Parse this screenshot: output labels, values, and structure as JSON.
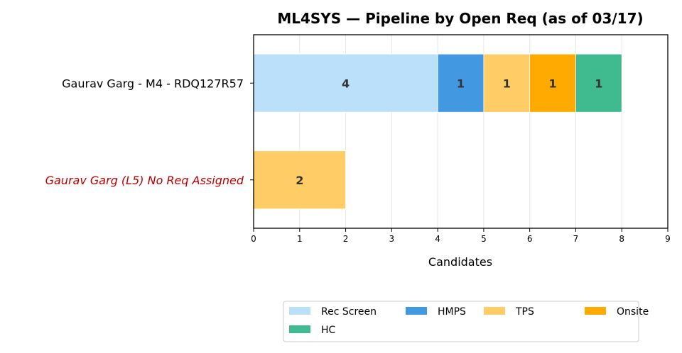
{
  "chart_data": {
    "type": "bar",
    "orientation": "horizontal",
    "stacked": true,
    "title": "ML4SYS — Pipeline by Open Req (as of 03/17)",
    "xlabel": "Candidates",
    "ylabel": "",
    "xlim": [
      0,
      9
    ],
    "xticks": [
      "0",
      "1",
      "2",
      "3",
      "4",
      "5",
      "6",
      "7",
      "8",
      "9"
    ],
    "grid": "vertical",
    "categories": [
      "Gaurav Garg - M4 - RDQ127R57",
      "Gaurav Garg (L5) No Req Assigned"
    ],
    "flagged_categories": [
      "Gaurav Garg (L5) No Req Assigned"
    ],
    "series": [
      {
        "name": "Rec Screen",
        "color": "#bbe1fa",
        "values": [
          4,
          0
        ]
      },
      {
        "name": "HMPS",
        "color": "#4299e1",
        "values": [
          1,
          0
        ]
      },
      {
        "name": "TPS",
        "color": "#ffcc66",
        "values": [
          1,
          2
        ]
      },
      {
        "name": "Onsite",
        "color": "#ffaa00",
        "values": [
          1,
          0
        ]
      },
      {
        "name": "HC",
        "color": "#40bb8f",
        "values": [
          1,
          0
        ]
      }
    ],
    "legend": {
      "position": "bottom",
      "columns": 4
    },
    "flag_color": "#c00000"
  }
}
